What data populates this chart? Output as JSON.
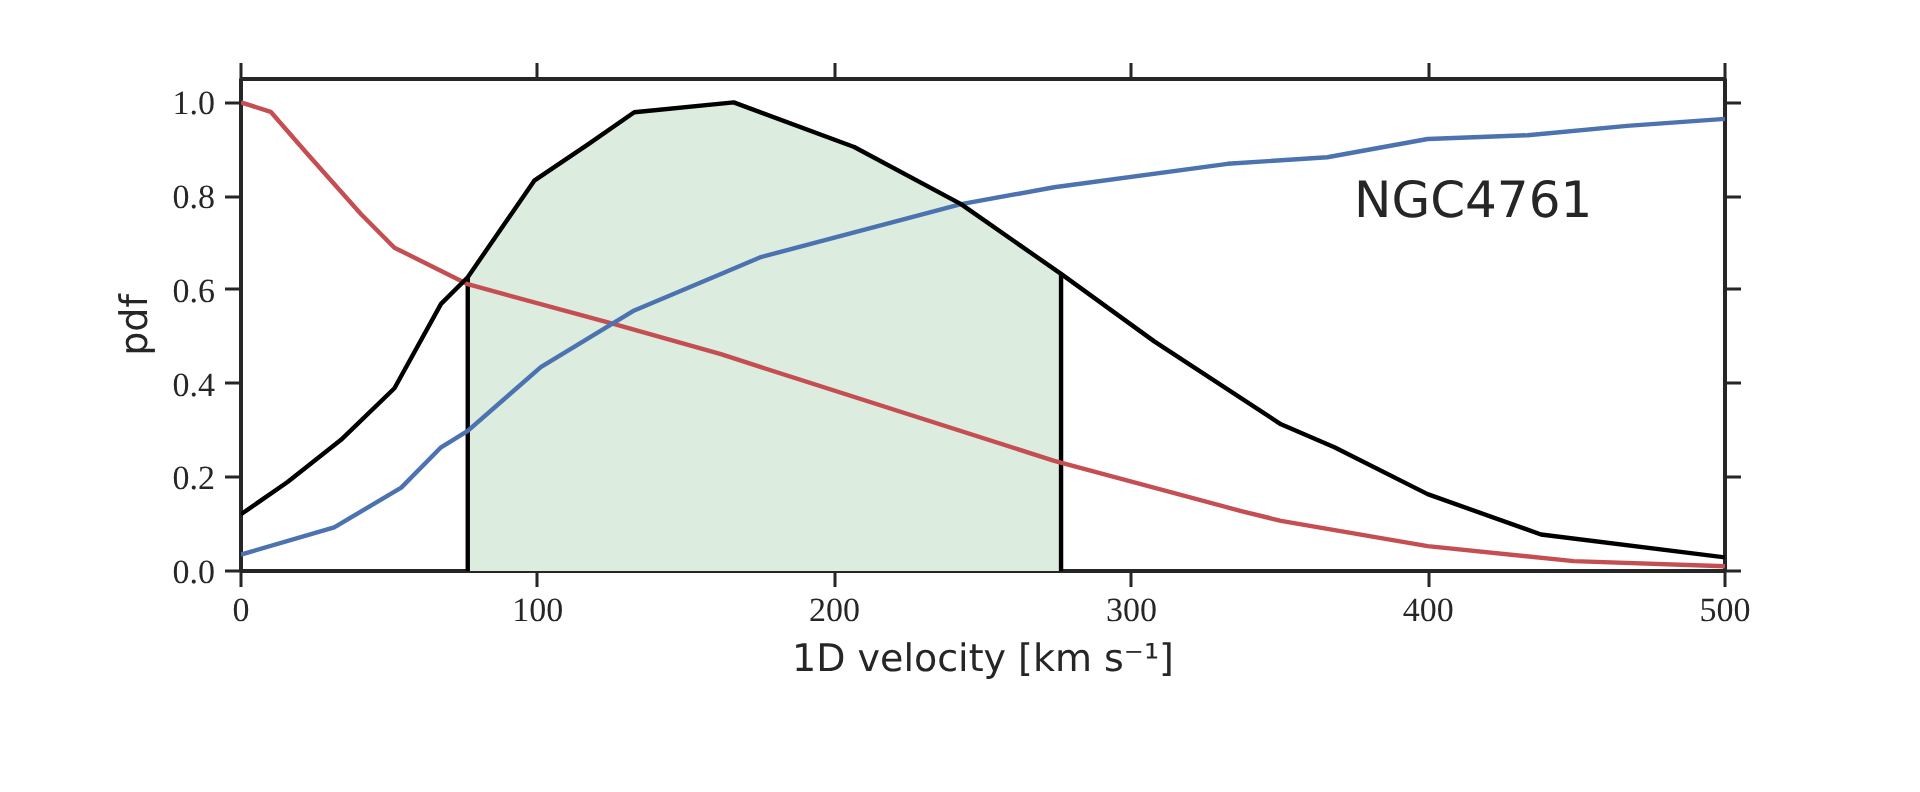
{
  "chart_data": {
    "type": "line",
    "xlabel": "1D velocity [km s⁻¹]",
    "ylabel": "pdf",
    "xlim": [
      0,
      500
    ],
    "ylim": [
      0,
      1.05
    ],
    "xticks": [
      0,
      100,
      200,
      300,
      400,
      500
    ],
    "yticks": [
      {
        "value": 0,
        "label": "0.0"
      },
      {
        "value": 0.2,
        "label": "0.2"
      },
      {
        "value": 0.4,
        "label": "0.4"
      },
      {
        "value": 0.6,
        "label": "0.6"
      },
      {
        "value": 0.8,
        "label": "0.8"
      },
      {
        "value": 1,
        "label": "1.0"
      }
    ],
    "grid": false,
    "annotations": [
      "NGC4761"
    ],
    "series": [
      {
        "type": "area",
        "color": "#dcecdf",
        "x": [
          76.4,
          98.8,
          116.8,
          132.5,
          166,
          206.6,
          242.6,
          276.3
        ],
        "values": [
          0.627,
          0.833,
          0.91,
          0.979,
          1.0,
          0.905,
          0.783,
          0.634
        ]
      },
      {
        "color": "#000000",
        "x": [
          76.4,
          76.4
        ],
        "values": [
          0,
          0.627
        ]
      },
      {
        "color": "#000000",
        "x": [
          276.3,
          276.3
        ],
        "values": [
          0,
          0.634
        ]
      },
      {
        "color": "#c44e52",
        "x": [
          0,
          10,
          22.4,
          40.4,
          51.7,
          76.4,
          125.8,
          161.7,
          175.2,
          274,
          337,
          350.4,
          399.8,
          449,
          500
        ],
        "values": [
          1.0,
          0.98,
          0.89,
          0.762,
          0.69,
          0.612,
          0.527,
          0.463,
          0.435,
          0.235,
          0.128,
          0.107,
          0.053,
          0.021,
          0.01
        ]
      },
      {
        "color": "#4c72b0",
        "x": [
          0,
          31.4,
          54,
          67.4,
          76.4,
          101,
          132.5,
          161.7,
          175.2,
          242.6,
          274,
          332.4,
          366,
          399.8,
          433.5,
          467,
          500
        ],
        "values": [
          0.035,
          0.093,
          0.178,
          0.264,
          0.299,
          0.435,
          0.556,
          0.634,
          0.67,
          0.783,
          0.819,
          0.869,
          0.883,
          0.922,
          0.93,
          0.95,
          0.965
        ]
      },
      {
        "color": "#000000",
        "x": [
          0,
          15.7,
          33.7,
          51.7,
          67.4,
          76.4,
          98.8,
          116.8,
          132.5,
          166,
          206.6,
          242.6,
          276.3,
          307.7,
          350.4,
          368.4,
          399.8,
          438,
          500
        ],
        "values": [
          0.121,
          0.19,
          0.28,
          0.39,
          0.57,
          0.627,
          0.833,
          0.91,
          0.979,
          1.0,
          0.905,
          0.783,
          0.634,
          0.49,
          0.313,
          0.264,
          0.164,
          0.078,
          0.029
        ]
      }
    ]
  }
}
